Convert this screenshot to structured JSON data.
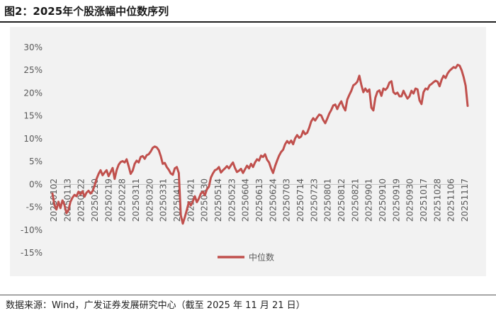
{
  "header": {
    "title": "图2：2025年个股涨幅中位数序列"
  },
  "footer": {
    "source": "数据来源：Wind，广发证券发展研究中心（截至 2025 年 11 月 21 日）"
  },
  "colors": {
    "series": "#c0504d",
    "panel": "#f2f2f2",
    "axis_text": "#595959"
  },
  "chart_data": {
    "type": "line",
    "title": "",
    "xlabel": "",
    "ylabel": "",
    "ylim": [
      -15,
      30
    ],
    "yticks": [
      -15,
      -10,
      -5,
      0,
      5,
      10,
      15,
      20,
      25,
      30
    ],
    "ytick_labels": [
      "-15%",
      "-10%",
      "-5%",
      "0%",
      "5%",
      "10%",
      "15%",
      "20%",
      "25%",
      "30%"
    ],
    "xtick_labels": [
      "20250102",
      "20250113",
      "20250122",
      "20250210",
      "20250219",
      "20250228",
      "20250311",
      "20250320",
      "20250331",
      "20250410",
      "20250421",
      "20250430",
      "20250514",
      "20250523",
      "20250604",
      "20250613",
      "20250624",
      "20250703",
      "20250714",
      "20250723",
      "20250801",
      "20250812",
      "20250821",
      "20250901",
      "20250910",
      "20250919",
      "20250930",
      "20251017",
      "20251028",
      "20251106",
      "20251117"
    ],
    "grid": false,
    "legend": "bottom",
    "series": [
      {
        "name": "中位数",
        "values": [
          -2,
          -4.5,
          -5.5,
          -3.8,
          -5.2,
          -3.5,
          -4.5,
          -6.3,
          -5.6,
          -3.8,
          -2.9,
          -2.3,
          -2.6,
          -1.6,
          -2.2,
          -1.5,
          -2.7,
          -1.8,
          -1.4,
          -2.0,
          -1.5,
          -0.3,
          1.2,
          2.3,
          3.1,
          2.0,
          2.6,
          3.1,
          1.8,
          2.7,
          3.6,
          1.2,
          3.1,
          4.3,
          4.9,
          5.1,
          4.8,
          5.5,
          4.0,
          2.3,
          3.0,
          4.5,
          5.2,
          4.8,
          6.0,
          6.2,
          5.6,
          6.4,
          6.6,
          7.2,
          8.0,
          8.3,
          8.1,
          7.5,
          6.2,
          4.5,
          4.7,
          3.8,
          3.2,
          2.4,
          2.1,
          3.5,
          3.8,
          2.5,
          -6.8,
          -8.6,
          -7.2,
          -5.6,
          -3.9,
          -4.6,
          -3.7,
          -2.6,
          -3.9,
          -3.1,
          -2.0,
          -1.6,
          -2.4,
          -1.1,
          -0.5,
          1.5,
          2.4,
          3.1,
          3.3,
          3.8,
          2.6,
          3.1,
          3.5,
          4.0,
          3.5,
          4.2,
          4.8,
          3.6,
          2.7,
          3.0,
          3.4,
          2.5,
          3.3,
          4.1,
          3.5,
          4.5,
          3.8,
          4.8,
          5.5,
          5.2,
          6.3,
          6.0,
          6.6,
          5.4,
          4.8,
          3.5,
          2.5,
          4.0,
          5.2,
          6.3,
          7.1,
          7.6,
          8.8,
          9.5,
          9.0,
          9.6,
          8.8,
          10.1,
          10.8,
          10.2,
          10.5,
          11.7,
          11.0,
          11.3,
          12.4,
          13.8,
          14.5,
          14.0,
          14.7,
          15.3,
          15.1,
          14.1,
          13.4,
          14.4,
          15.5,
          16.3,
          17.3,
          17.5,
          16.5,
          17.5,
          18.2,
          17.0,
          16.2,
          18.6,
          19.6,
          20.5,
          21.7,
          22.0,
          22.5,
          23.8,
          21.8,
          20.2,
          21.0,
          20.3,
          20.8,
          16.8,
          16.2,
          19.0,
          20.3,
          20.6,
          19.4,
          21.0,
          20.7,
          21.2,
          22.3,
          22.6,
          20.2,
          19.8,
          20.1,
          19.3,
          19.3,
          20.5,
          19.6,
          18.8,
          19.3,
          20.5,
          19.9,
          21.0,
          20.8,
          18.4,
          17.6,
          20.2,
          21.0,
          20.8,
          21.7,
          22.0,
          22.4,
          22.7,
          22.5,
          21.5,
          22.9,
          23.8,
          23.3,
          24.3,
          24.9,
          25.3,
          25.7,
          25.5,
          26.2,
          26.0,
          25.0,
          23.5,
          21.6,
          17.2
        ]
      }
    ]
  }
}
